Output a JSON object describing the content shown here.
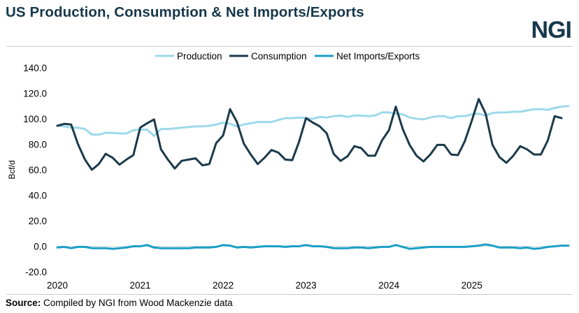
{
  "header": {
    "title": "US Production, Consumption & Net Imports/Exports",
    "logo": "NGI"
  },
  "footer": {
    "source_label": "Source:",
    "source_text": "Compiled by NGI from Wood Mackenzie data"
  },
  "colors": {
    "production": "#9dd9ea",
    "consumption": "#1b3a4b",
    "net": "#1a9fc6",
    "title": "#16384c"
  },
  "chart_data": {
    "type": "line",
    "title": "US Production, Consumption & Net Imports/Exports",
    "xlabel": "",
    "ylabel": "Bcf/d",
    "ylim": [
      -20,
      140
    ],
    "yticks": [
      "140.0",
      "120.0",
      "100.0",
      "80.0",
      "60.0",
      "40.0",
      "20.0",
      "0.0",
      "-20.0"
    ],
    "ytick_values": [
      140,
      120,
      100,
      80,
      60,
      40,
      20,
      0,
      -20
    ],
    "xticks": [
      "2020",
      "2021",
      "2022",
      "2023",
      "2024",
      "2025"
    ],
    "x_start": "2020-01",
    "grid": false,
    "legend_position": "top",
    "series": [
      {
        "name": "Production",
        "values": [
          94.5,
          94,
          93,
          93,
          92,
          87.5,
          87.5,
          89,
          89,
          88.5,
          88.5,
          91,
          91.5,
          91.5,
          86.5,
          92,
          92,
          92.5,
          93,
          93.5,
          94,
          94,
          94.5,
          95.5,
          97,
          96,
          94,
          95.5,
          96.5,
          97.5,
          97.5,
          97.5,
          99,
          100.5,
          100.5,
          101,
          100.5,
          100,
          101.5,
          101,
          102,
          102.5,
          101.5,
          102.5,
          102.5,
          102,
          102.5,
          105,
          105,
          104,
          103.5,
          101,
          100,
          99.5,
          101,
          102,
          102,
          100.5,
          102,
          102,
          103.5,
          104,
          102.5,
          104.5,
          105,
          105,
          105.5,
          105.5,
          106.5,
          107.5,
          107.5,
          107,
          108.5,
          109.5,
          110
        ]
      },
      {
        "name": "Consumption",
        "values": [
          94.5,
          96,
          95.5,
          80,
          68,
          60,
          64.5,
          72.5,
          69.5,
          64,
          68,
          71.5,
          93,
          96.5,
          99.5,
          76,
          68,
          61,
          67,
          68,
          69,
          63.5,
          64.5,
          81,
          87,
          107.5,
          97.5,
          80.5,
          72,
          64.5,
          69.5,
          75.5,
          73.5,
          68,
          67.5,
          82,
          100.5,
          97,
          94,
          88.5,
          72.5,
          67,
          70.5,
          78.5,
          77,
          71,
          71,
          83,
          91,
          109.5,
          92,
          79.5,
          71,
          66.5,
          72,
          79.5,
          79.5,
          72,
          71.5,
          82.5,
          98.5,
          115.5,
          104,
          79.5,
          70,
          65.5,
          71,
          78.5,
          76,
          72,
          72,
          83,
          102,
          100.5
        ]
      },
      {
        "name": "Net Imports/Exports",
        "values": [
          -1,
          -0.5,
          -1.5,
          -0.5,
          -0.5,
          -1.5,
          -1.5,
          -1.5,
          -2,
          -1.5,
          -1,
          0,
          0,
          1,
          -1,
          -1.5,
          -1.5,
          -1.5,
          -1.5,
          -1.5,
          -1,
          -1,
          -1,
          -0.5,
          1,
          0.5,
          -1,
          -0.5,
          -1,
          -0.5,
          0,
          0,
          0,
          -0.5,
          0,
          0,
          1,
          0,
          0,
          -0.5,
          -1.5,
          -1.5,
          -1.5,
          -1,
          -1,
          -1.5,
          -1,
          -0.5,
          -0.5,
          1,
          -0.5,
          -2,
          -1.5,
          -1,
          -0.5,
          -0.5,
          -0.5,
          -0.5,
          -0.5,
          -0.5,
          0,
          0.5,
          1.5,
          0.5,
          -1,
          -1,
          -1,
          -1.5,
          -1,
          -2,
          -1.5,
          -0.5,
          0,
          0.5,
          0.5
        ]
      }
    ]
  }
}
